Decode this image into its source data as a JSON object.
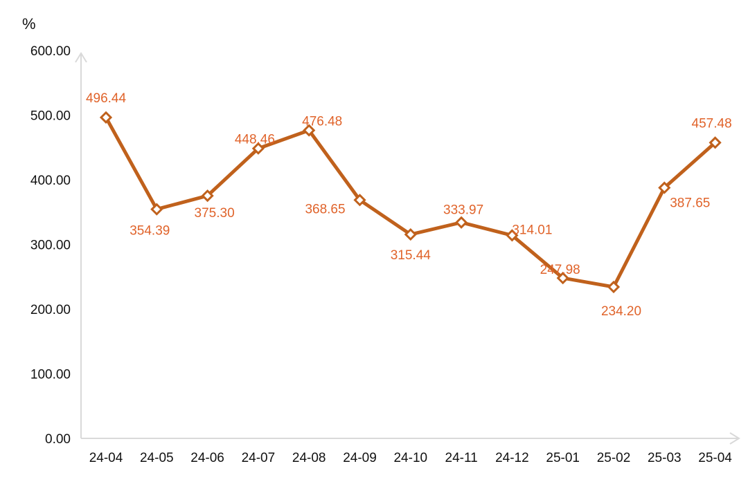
{
  "chart_data": {
    "type": "line",
    "ylabel": "%",
    "xlabel": "",
    "ylim": [
      0,
      600
    ],
    "yticks": [
      "0.00",
      "100.00",
      "200.00",
      "300.00",
      "400.00",
      "500.00",
      "600.00"
    ],
    "categories": [
      "24-04",
      "24-05",
      "24-06",
      "24-07",
      "24-08",
      "24-09",
      "24-10",
      "24-11",
      "24-12",
      "25-01",
      "25-02",
      "25-03",
      "25-04"
    ],
    "series": [
      {
        "values": [
          496.44,
          354.39,
          375.3,
          448.46,
          476.48,
          368.65,
          315.44,
          333.97,
          314.01,
          247.98,
          234.2,
          387.65,
          457.48
        ],
        "labels": [
          "496.44",
          "354.39",
          "375.30",
          "448.46",
          "476.48",
          "368.65",
          "315.44",
          "333.97",
          "314.01",
          "247.98",
          "234.20",
          "387.65",
          "457.48"
        ]
      }
    ],
    "grid": false,
    "marker": "diamond",
    "colors": {
      "line": "#C0611C",
      "label": "#E0632A",
      "axis": "#D9D9D9",
      "marker_fill": "#FFFFFF"
    }
  }
}
